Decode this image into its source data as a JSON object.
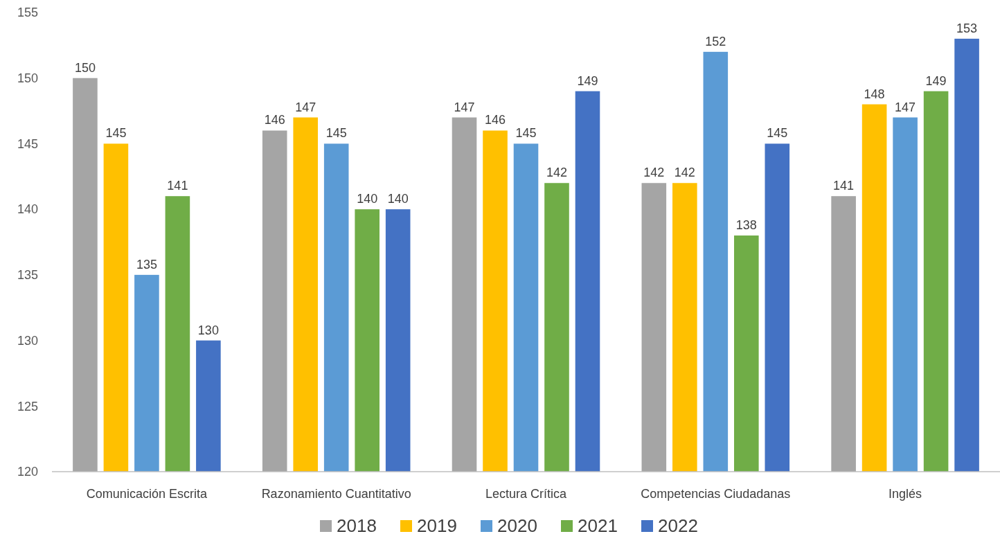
{
  "chart_data": {
    "type": "bar",
    "categories": [
      "Comunicación Escrita",
      "Razonamiento Cuantitativo",
      "Lectura Crítica",
      "Competencias Ciudadanas",
      "Inglés"
    ],
    "series": [
      {
        "name": "2018",
        "color": "#a5a5a5",
        "values": [
          150,
          146,
          147,
          142,
          141
        ]
      },
      {
        "name": "2019",
        "color": "#ffc000",
        "values": [
          145,
          147,
          146,
          142,
          148
        ]
      },
      {
        "name": "2020",
        "color": "#5b9bd5",
        "values": [
          135,
          145,
          145,
          152,
          147
        ]
      },
      {
        "name": "2021",
        "color": "#70ad47",
        "values": [
          141,
          140,
          142,
          138,
          149
        ]
      },
      {
        "name": "2022",
        "color": "#4472c4",
        "values": [
          130,
          140,
          149,
          145,
          153
        ]
      }
    ],
    "ylim": [
      120,
      155
    ],
    "yticks": [
      120,
      125,
      130,
      135,
      140,
      145,
      150,
      155
    ],
    "grid": false,
    "legend": "bottom",
    "data_labels": true
  }
}
